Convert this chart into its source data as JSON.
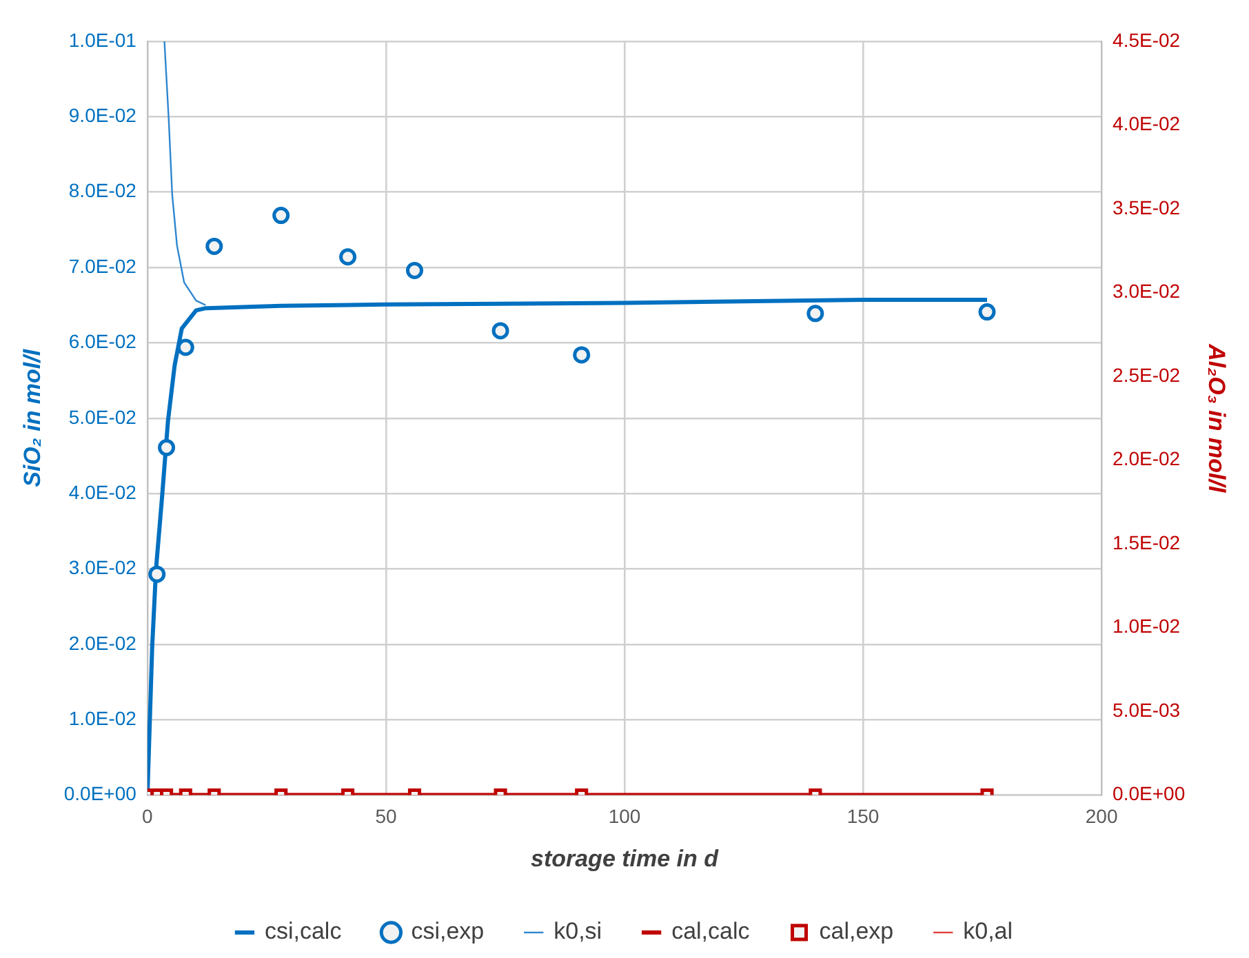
{
  "chart_data": {
    "type": "line",
    "xlabel": "storage time in d",
    "ylabel": "SiO₂ in mol/l",
    "y2label": "Al₂O₃ in mol/l",
    "xlim": [
      0,
      200
    ],
    "xticks": [
      0,
      50,
      100,
      150,
      200
    ],
    "ylim": [
      0,
      0.1
    ],
    "yticks": [
      {
        "value": 0,
        "label": "0.0E+00"
      },
      {
        "value": 0.01,
        "label": "1.0E-02"
      },
      {
        "value": 0.02,
        "label": "2.0E-02"
      },
      {
        "value": 0.03,
        "label": "3.0E-02"
      },
      {
        "value": 0.04,
        "label": "4.0E-02"
      },
      {
        "value": 0.05,
        "label": "5.0E-02"
      },
      {
        "value": 0.06,
        "label": "6.0E-02"
      },
      {
        "value": 0.07,
        "label": "7.0E-02"
      },
      {
        "value": 0.08,
        "label": "8.0E-02"
      },
      {
        "value": 0.09,
        "label": "9.0E-02"
      },
      {
        "value": 0.1,
        "label": "1.0E-01"
      }
    ],
    "y2lim": [
      0,
      0.045
    ],
    "y2ticks": [
      {
        "value": 0,
        "label": "0.0E+00"
      },
      {
        "value": 0.005,
        "label": "5.0E-03"
      },
      {
        "value": 0.01,
        "label": "1.0E-02"
      },
      {
        "value": 0.015,
        "label": "1.5E-02"
      },
      {
        "value": 0.02,
        "label": "2.0E-02"
      },
      {
        "value": 0.025,
        "label": "2.5E-02"
      },
      {
        "value": 0.03,
        "label": "3.0E-02"
      },
      {
        "value": 0.035,
        "label": "3.5E-02"
      },
      {
        "value": 0.04,
        "label": "4.0E-02"
      },
      {
        "value": 0.045,
        "label": "4.5E-02"
      }
    ],
    "grid": true,
    "legend": "bottom",
    "series": [
      {
        "name": "csi,calc",
        "type": "line",
        "color": "#0070c0",
        "x": [
          0,
          0.5,
          1,
          1.8,
          3.1,
          4.3,
          5.7,
          7.2,
          10.2,
          12.2,
          28,
          50,
          100,
          150,
          176
        ],
        "values": [
          0,
          0.0099,
          0.0197,
          0.03,
          0.0398,
          0.0496,
          0.057,
          0.0619,
          0.0643,
          0.0646,
          0.0649,
          0.0651,
          0.0653,
          0.0657,
          0.0657
        ]
      },
      {
        "name": "csi,exp",
        "type": "scatter",
        "marker": "circle",
        "color": "#0070c0",
        "x": [
          2,
          4,
          8,
          14,
          28,
          42,
          56,
          74,
          91,
          140,
          176
        ],
        "values": [
          0.0293,
          0.0461,
          0.0594,
          0.0728,
          0.0769,
          0.0714,
          0.0696,
          0.0616,
          0.0584,
          0.0639,
          0.0641
        ]
      },
      {
        "name": "k0,si",
        "type": "line",
        "color": "#2e86d0",
        "x": [
          3.56,
          4.45,
          5.2,
          6.2,
          7.7,
          10.2,
          12.2
        ],
        "values": [
          0.1,
          0.0898,
          0.0796,
          0.0729,
          0.068,
          0.0656,
          0.065
        ]
      },
      {
        "name": "cal,calc",
        "type": "line",
        "axis": "y2",
        "color": "#c00000",
        "x": [
          0,
          176
        ],
        "values": [
          0,
          0
        ]
      },
      {
        "name": "cal,exp",
        "type": "scatter",
        "marker": "square",
        "axis": "y2",
        "color": "#c00000",
        "x": [
          0,
          2,
          4,
          8,
          14,
          28,
          42,
          56,
          74,
          91,
          140,
          176
        ],
        "values": [
          0,
          0,
          0,
          0,
          0,
          0,
          0,
          0,
          0,
          0,
          0,
          0
        ]
      },
      {
        "name": "k0,al",
        "type": "line",
        "axis": "y2",
        "color": "#e04040"
      }
    ]
  }
}
